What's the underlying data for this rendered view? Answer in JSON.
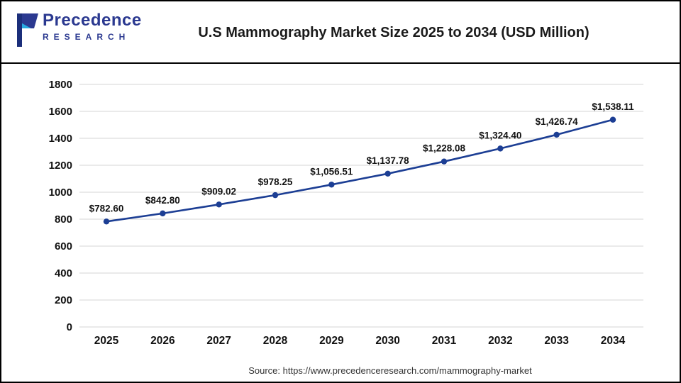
{
  "logo": {
    "name": "Precedence",
    "subname": "RESEARCH",
    "primary_color": "#2b3990",
    "accent_color": "#27aae1"
  },
  "header": {
    "title": "U.S Mammography Market Size 2025 to 2034 (USD Million)"
  },
  "footer": {
    "source": "Source: https://www.precedenceresearch.com/mammography-market"
  },
  "chart_data": {
    "type": "line",
    "title": "U.S Mammography Market Size 2025 to 2034 (USD Million)",
    "categories": [
      "2025",
      "2026",
      "2027",
      "2028",
      "2029",
      "2030",
      "2031",
      "2032",
      "2033",
      "2034"
    ],
    "values": [
      782.6,
      842.8,
      909.02,
      978.25,
      1056.51,
      1137.78,
      1228.08,
      1324.4,
      1426.74,
      1538.11
    ],
    "labels": [
      "$782.60",
      "$842.80",
      "$909.02",
      "$978.25",
      "$1,056.51",
      "$1,137.78",
      "$1,228.08",
      "$1,324.40",
      "$1,426.74",
      "$1,538.11"
    ],
    "xlabel": "",
    "ylabel": "",
    "ylim": [
      0,
      1800
    ],
    "ytick_step": 200,
    "grid": true,
    "legend": "none",
    "line_color": "#1c3e94",
    "marker_color": "#1c3e94"
  }
}
